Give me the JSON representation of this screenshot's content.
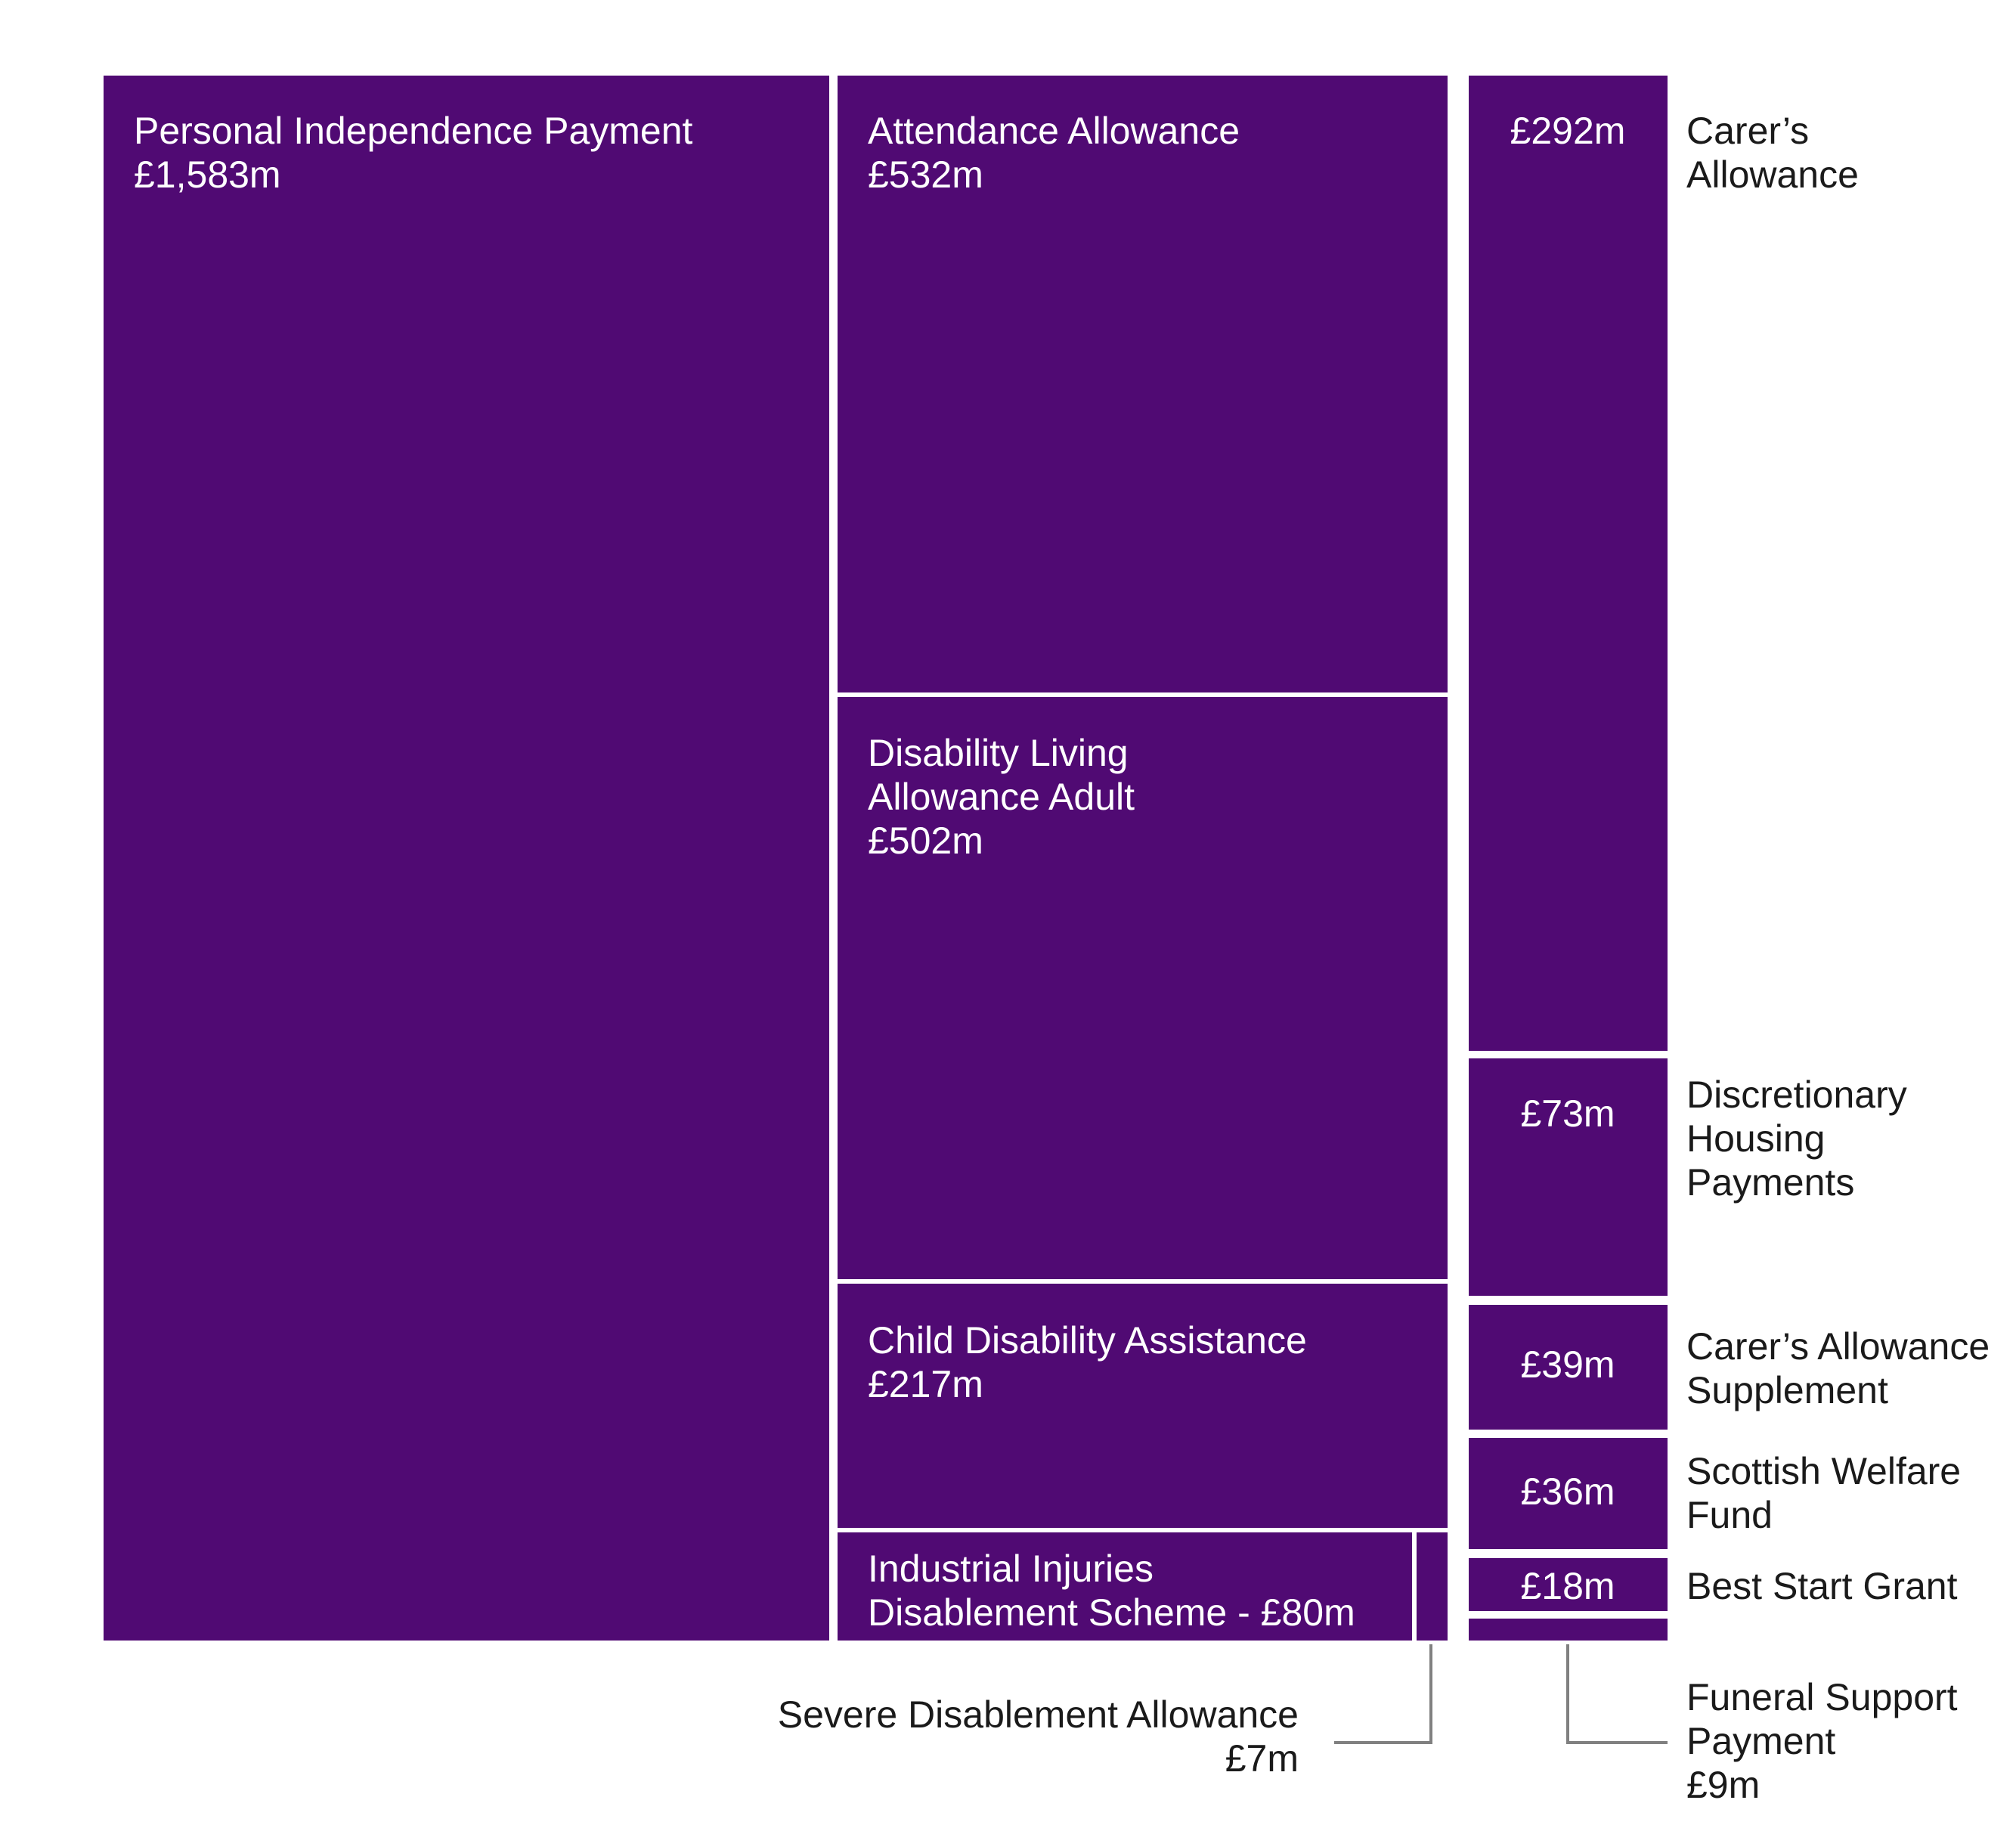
{
  "chart_data": {
    "type": "treemap",
    "unit": "£m",
    "tile_color": "#500a73",
    "items": [
      {
        "id": "pip",
        "lines": [
          "Personal Independence Payment",
          "£1,583m"
        ],
        "value": 1583
      },
      {
        "id": "aa",
        "lines": [
          "Attendance Allowance",
          "£532m"
        ],
        "value": 532
      },
      {
        "id": "dla",
        "lines": [
          "Disability Living",
          "Allowance Adult",
          "£502m"
        ],
        "value": 502
      },
      {
        "id": "cda",
        "lines": [
          "Child Disability Assistance",
          "£217m"
        ],
        "value": 217
      },
      {
        "id": "iids",
        "lines": [
          "Industrial Injuries",
          "Disablement Scheme - £80m"
        ],
        "value": 80
      },
      {
        "id": "sda",
        "lines": [
          "Severe Disablement Allowance",
          "£7m"
        ],
        "value": 7
      },
      {
        "id": "ca",
        "value_label": "£292m",
        "lines": [
          "Carer’s",
          "Allowance"
        ],
        "value": 292
      },
      {
        "id": "dhp",
        "value_label": "£73m",
        "lines": [
          "Discretionary",
          "Housing",
          "Payments"
        ],
        "value": 73
      },
      {
        "id": "cas",
        "value_label": "£39m",
        "lines": [
          "Carer’s Allowance",
          "Supplement"
        ],
        "value": 39
      },
      {
        "id": "swf",
        "value_label": "£36m",
        "lines": [
          "Scottish Welfare",
          "Fund"
        ],
        "value": 36
      },
      {
        "id": "bsg",
        "value_label": "£18m",
        "lines": [
          "Best Start Grant"
        ],
        "value": 18
      },
      {
        "id": "fsp",
        "lines": [
          "Funeral Support",
          "Payment",
          "£9m"
        ],
        "value": 9
      }
    ]
  }
}
